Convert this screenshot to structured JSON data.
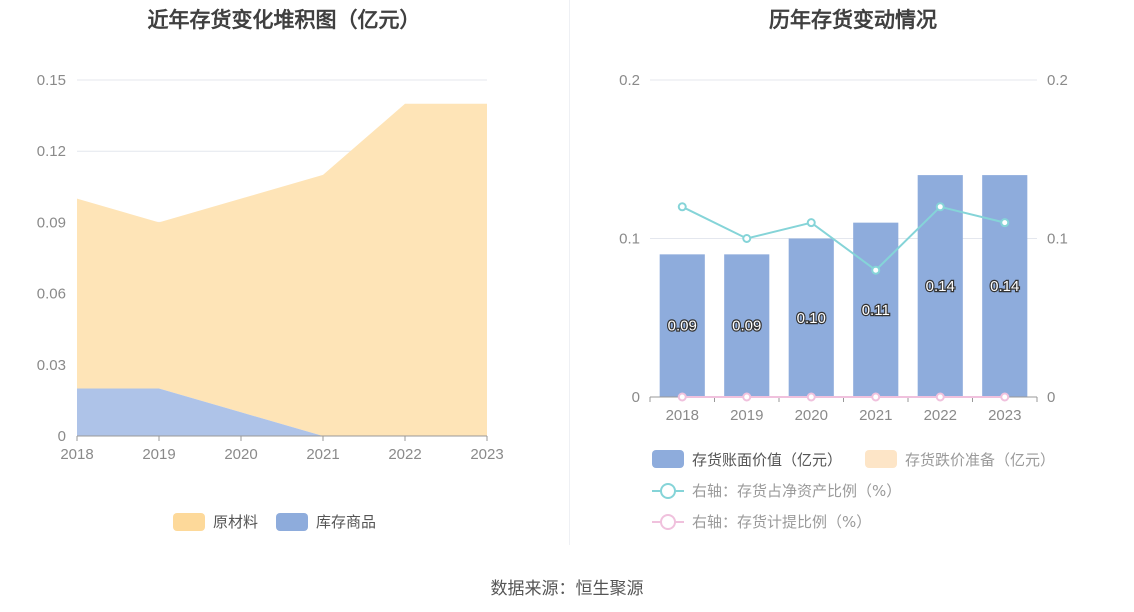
{
  "source_label": "数据来源：恒生聚源",
  "colors": {
    "raw_material": "#fee4b7",
    "raw_material_legend": "#fdd99a",
    "finished_goods": "#aec3e8",
    "finished_goods_legend": "#8eacdc",
    "bar": "#8eacdc",
    "impairment": "#fde5c7",
    "ratio_line": "#85d4d8",
    "provision_line": "#f0c1dd",
    "grid": "#e4e7ee",
    "axis": "#999999"
  },
  "chart_data": [
    {
      "type": "area",
      "stacked": true,
      "title": "近年存货变化堆积图（亿元）",
      "categories": [
        "2018",
        "2019",
        "2020",
        "2021",
        "2022",
        "2023"
      ],
      "y_ticks": [
        "0",
        "0.03",
        "0.06",
        "0.09",
        "0.12",
        "0.15"
      ],
      "ylim": [
        0,
        0.15
      ],
      "grid": true,
      "legend_position": "bottom",
      "series": [
        {
          "name": "库存商品",
          "values": [
            0.02,
            0.02,
            0.01,
            0.0,
            0.0,
            0.0
          ]
        },
        {
          "name": "原材料",
          "values": [
            0.08,
            0.07,
            0.09,
            0.11,
            0.14,
            0.14
          ]
        }
      ],
      "legend": [
        {
          "label": "原材料",
          "color_key": "raw_material_legend"
        },
        {
          "label": "库存商品",
          "color_key": "finished_goods_legend"
        }
      ]
    },
    {
      "type": "bar",
      "title": "历年存货变动情况",
      "categories": [
        "2018",
        "2019",
        "2020",
        "2021",
        "2022",
        "2023"
      ],
      "y_left_ticks": [
        "0",
        "0.1",
        "0.2"
      ],
      "y_right_ticks": [
        "0",
        "0.1",
        "0.2"
      ],
      "ylim": [
        0,
        0.2
      ],
      "y2lim": [
        0,
        0.2
      ],
      "grid": true,
      "legend_position": "bottom",
      "series": [
        {
          "name": "存货账面价值（亿元）",
          "type": "bar",
          "values": [
            0.09,
            0.09,
            0.1,
            0.11,
            0.14,
            0.14
          ],
          "labels": [
            "0.09",
            "0.09",
            "0.10",
            "0.11",
            "0.14",
            "0.14"
          ]
        },
        {
          "name": "存货跌价准备（亿元）",
          "type": "bar",
          "values": [
            0,
            0,
            0,
            0,
            0,
            0
          ]
        },
        {
          "name": "右轴：存货占净资产比例（%）",
          "type": "line",
          "axis": "right",
          "values": [
            0.12,
            0.1,
            0.11,
            0.08,
            0.12,
            0.11
          ]
        },
        {
          "name": "右轴：存货计提比例（%）",
          "type": "line",
          "axis": "right",
          "values": [
            0,
            0,
            0,
            0,
            0,
            0
          ]
        }
      ]
    }
  ]
}
